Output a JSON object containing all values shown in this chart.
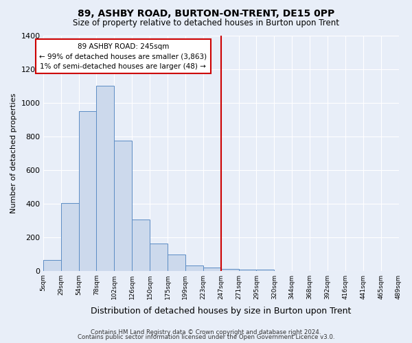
{
  "title": "89, ASHBY ROAD, BURTON-ON-TRENT, DE15 0PP",
  "subtitle": "Size of property relative to detached houses in Burton upon Trent",
  "xlabel": "Distribution of detached houses by size in Burton upon Trent",
  "ylabel": "Number of detached properties",
  "bar_values": [
    65,
    405,
    950,
    1100,
    775,
    305,
    165,
    100,
    35,
    20,
    15,
    10,
    10,
    0,
    0,
    0,
    0,
    0,
    0,
    0
  ],
  "bin_labels": [
    "5sqm",
    "29sqm",
    "54sqm",
    "78sqm",
    "102sqm",
    "126sqm",
    "150sqm",
    "175sqm",
    "199sqm",
    "223sqm",
    "247sqm",
    "271sqm",
    "295sqm",
    "320sqm",
    "344sqm",
    "368sqm",
    "392sqm",
    "416sqm",
    "441sqm",
    "465sqm",
    "489sqm"
  ],
  "bar_color": "#ccd9ec",
  "bar_edge_color": "#5b8cc4",
  "vline_x_index": 10,
  "vline_color": "#cc0000",
  "annotation_text": "89 ASHBY ROAD: 245sqm\n← 99% of detached houses are smaller (3,863)\n1% of semi-detached houses are larger (48) →",
  "annotation_box_color": "white",
  "annotation_box_edge": "#cc0000",
  "ylim": [
    0,
    1400
  ],
  "yticks": [
    0,
    200,
    400,
    600,
    800,
    1000,
    1200,
    1400
  ],
  "background_color": "#e8eef8",
  "grid_color": "#ffffff",
  "footer1": "Contains HM Land Registry data © Crown copyright and database right 2024.",
  "footer2": "Contains public sector information licensed under the Open Government Licence v3.0."
}
